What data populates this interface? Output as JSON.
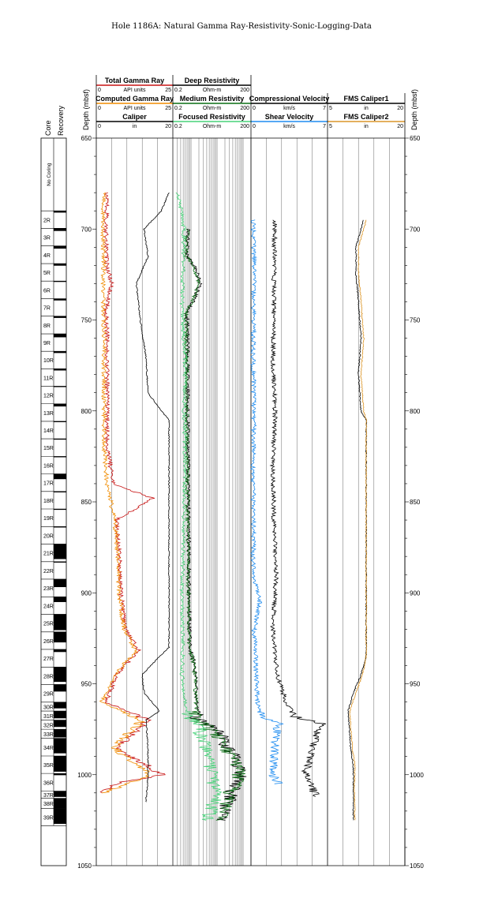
{
  "title": "Hole 1186A: Natural Gamma Ray-Resistivity-Sonic-Logging-Data",
  "depth_axis": {
    "label": "Depth (mbsf)",
    "min": 650,
    "max": 1050,
    "ticks": [
      650,
      700,
      750,
      800,
      850,
      900,
      950,
      1000,
      1050
    ]
  },
  "core_column": {
    "core_label": "Core",
    "recovery_label": "Recovery",
    "no_coring_label": "No Coring",
    "no_coring_range": [
      650,
      690
    ],
    "cores": [
      {
        "name": "2R",
        "top": 690.0,
        "bottom": 699.6,
        "rec": 0.1
      },
      {
        "name": "3R",
        "top": 699.6,
        "bottom": 709.3,
        "rec": 0.15
      },
      {
        "name": "4R",
        "top": 709.3,
        "bottom": 719.0,
        "rec": 0.15
      },
      {
        "name": "5R",
        "top": 719.0,
        "bottom": 728.6,
        "rec": 0.12
      },
      {
        "name": "6R",
        "top": 728.6,
        "bottom": 738.3,
        "rec": 0.05
      },
      {
        "name": "7R",
        "top": 738.3,
        "bottom": 747.9,
        "rec": 0.1
      },
      {
        "name": "8R",
        "top": 747.9,
        "bottom": 757.6,
        "rec": 0.1
      },
      {
        "name": "9R",
        "top": 757.6,
        "bottom": 767.2,
        "rec": 0.2
      },
      {
        "name": "10R",
        "top": 767.2,
        "bottom": 776.8,
        "rec": 0.1
      },
      {
        "name": "11R",
        "top": 776.8,
        "bottom": 786.4,
        "rec": 0.1
      },
      {
        "name": "12R",
        "top": 786.4,
        "bottom": 796.1,
        "rec": 0.05
      },
      {
        "name": "13R",
        "top": 796.1,
        "bottom": 805.7,
        "rec": 0.15
      },
      {
        "name": "14R",
        "top": 805.7,
        "bottom": 815.3,
        "rec": 0.05
      },
      {
        "name": "15R",
        "top": 815.3,
        "bottom": 825.0,
        "rec": 0.05
      },
      {
        "name": "16R",
        "top": 825.0,
        "bottom": 834.6,
        "rec": 0.05
      },
      {
        "name": "17R",
        "top": 834.6,
        "bottom": 844.3,
        "rec": 0.3
      },
      {
        "name": "18R",
        "top": 844.3,
        "bottom": 853.9,
        "rec": 0.05
      },
      {
        "name": "19R",
        "top": 853.9,
        "bottom": 863.6,
        "rec": 0.05
      },
      {
        "name": "20R",
        "top": 863.6,
        "bottom": 873.2,
        "rec": 0.05
      },
      {
        "name": "21R",
        "top": 873.2,
        "bottom": 882.9,
        "rec": 0.85
      },
      {
        "name": "22R",
        "top": 882.9,
        "bottom": 892.5,
        "rec": 0.05
      },
      {
        "name": "23R",
        "top": 892.5,
        "bottom": 902.2,
        "rec": 0.45
      },
      {
        "name": "24R",
        "top": 902.2,
        "bottom": 911.8,
        "rec": 0.3
      },
      {
        "name": "25R",
        "top": 911.8,
        "bottom": 921.5,
        "rec": 0.9
      },
      {
        "name": "26R",
        "top": 921.5,
        "bottom": 931.1,
        "rec": 0.6
      },
      {
        "name": "27R",
        "top": 931.1,
        "bottom": 940.8,
        "rec": 0.15
      },
      {
        "name": "28R",
        "top": 940.8,
        "bottom": 950.4,
        "rec": 0.85
      },
      {
        "name": "29R",
        "top": 950.4,
        "bottom": 960.1,
        "rec": 0.4
      },
      {
        "name": "30R",
        "top": 960.1,
        "bottom": 965.0,
        "rec": 0.7
      },
      {
        "name": "31R",
        "top": 965.0,
        "bottom": 970.0,
        "rec": 0.8
      },
      {
        "name": "32R",
        "top": 970.0,
        "bottom": 975.0,
        "rec": 0.75
      },
      {
        "name": "33R",
        "top": 975.0,
        "bottom": 980.0,
        "rec": 0.9
      },
      {
        "name": "34R",
        "top": 980.0,
        "bottom": 989.7,
        "rec": 0.85
      },
      {
        "name": "35R",
        "top": 989.7,
        "bottom": 999.3,
        "rec": 0.9
      },
      {
        "name": "36R",
        "top": 999.3,
        "bottom": 1009.0,
        "rec": 0.1
      },
      {
        "name": "37R",
        "top": 1009.0,
        "bottom": 1013.0,
        "rec": 0.8
      },
      {
        "name": "38R",
        "top": 1013.0,
        "bottom": 1018.5,
        "rec": 1.0
      },
      {
        "name": "39R",
        "top": 1018.5,
        "bottom": 1028.0,
        "rec": 0.9
      }
    ]
  },
  "tracks": {
    "track1": {
      "curves": [
        {
          "name": "Total Gamma Ray",
          "unit": "API units",
          "min_label": "0",
          "max_label": "25",
          "color": "#c81414"
        },
        {
          "name": "Computed Gamma Ray",
          "unit": "API units",
          "min_label": "0",
          "max_label": "25",
          "color": "#f08c00"
        },
        {
          "name": "Caliper",
          "unit": "in",
          "min_label": "0",
          "max_label": "20",
          "color": "#000000"
        }
      ]
    },
    "track2": {
      "curves": [
        {
          "name": "Deep Resistivity",
          "unit": "Ohm-m",
          "min_label": "0.2",
          "max_label": "200",
          "color": "#000000"
        },
        {
          "name": "Medium Resistivity",
          "unit": "Ohm-m",
          "min_label": "0.2",
          "max_label": "200",
          "color": "#0a6e14"
        },
        {
          "name": "Focused Resistivity",
          "unit": "Ohm-m",
          "min_label": "0.2",
          "max_label": "200",
          "color": "#46d278"
        }
      ]
    },
    "track3": {
      "curves": [
        {
          "name": "Compressional Velocity",
          "unit": "km/s",
          "min_label": "0",
          "max_label": "7",
          "color": "#000000"
        },
        {
          "name": "Shear Velocity",
          "unit": "km/s",
          "min_label": "0",
          "max_label": "7",
          "color": "#1e8cf0"
        }
      ]
    },
    "track4": {
      "curves": [
        {
          "name": "FMS Caliper1",
          "unit": "in",
          "min_label": "5",
          "max_label": "20",
          "color": "#000000"
        },
        {
          "name": "FMS Caliper2",
          "unit": "in",
          "min_label": "5",
          "max_label": "20",
          "color": "#dc9628"
        }
      ]
    }
  },
  "chart_data": {
    "type": "line",
    "y_axis": "depth (mbsf)",
    "series": [
      {
        "name": "Total Gamma Ray",
        "track": 1,
        "min": 0,
        "max": 25,
        "scale": "linear",
        "color": "#c81414",
        "depth": [
          680,
          700,
          720,
          730,
          745,
          760,
          790,
          820,
          840,
          848,
          860,
          880,
          900,
          920,
          932,
          945,
          955,
          960,
          970,
          975,
          985,
          1000,
          1005,
          1010
        ],
        "values": [
          3.5,
          3.2,
          3.4,
          5.0,
          3.2,
          3.6,
          3.5,
          3.6,
          5.5,
          18.5,
          6.5,
          7.5,
          8.0,
          9.5,
          14,
          6.5,
          4.5,
          3,
          17,
          14,
          6.5,
          21.5,
          6,
          2.5
        ]
      },
      {
        "name": "Computed Gamma Ray",
        "track": 1,
        "min": 0,
        "max": 25,
        "scale": "linear",
        "color": "#f08c00",
        "depth": [
          680,
          700,
          720,
          745,
          760,
          790,
          820,
          840,
          860,
          880,
          900,
          920,
          932,
          945,
          955,
          960,
          970,
          975,
          985,
          1000,
          1010
        ],
        "values": [
          2.5,
          2.2,
          2.4,
          2.3,
          2.6,
          2.5,
          2.6,
          3.5,
          6.0,
          7.0,
          7.5,
          9.0,
          13,
          6.0,
          3.5,
          1.5,
          15,
          12,
          5.5,
          18,
          2.0
        ]
      },
      {
        "name": "Caliper",
        "track": 1,
        "min": 0,
        "max": 20,
        "scale": "linear",
        "color": "#000000",
        "depth": [
          680,
          690,
          700,
          715,
          730,
          750,
          770,
          790,
          800,
          805,
          820,
          850,
          880,
          900,
          920,
          930,
          935,
          945,
          955,
          965,
          970,
          985,
          1000,
          1015
        ],
        "values": [
          19,
          17,
          12.5,
          13.5,
          10.5,
          11.5,
          13,
          13.5,
          17,
          19,
          19,
          19,
          19,
          19,
          19,
          19,
          16.5,
          12,
          12.5,
          16.5,
          13,
          13.5,
          13.5,
          13
        ]
      },
      {
        "name": "Deep Resistivity",
        "track": 2,
        "min": 0.2,
        "max": 200,
        "scale": "log",
        "color": "#000000",
        "depth": [
          700,
          715,
          725,
          730,
          745,
          770,
          800,
          850,
          900,
          930,
          940,
          955,
          968,
          972,
          985,
          1000,
          1010,
          1025
        ],
        "values": [
          0.8,
          0.7,
          1.8,
          2.2,
          0.7,
          0.75,
          0.75,
          0.8,
          0.85,
          0.9,
          1.4,
          1.6,
          1.8,
          3.5,
          30,
          90,
          40,
          15
        ]
      },
      {
        "name": "Medium Resistivity",
        "track": 2,
        "min": 0.2,
        "max": 200,
        "scale": "log",
        "color": "#0a6e14",
        "depth": [
          700,
          715,
          725,
          730,
          745,
          770,
          800,
          850,
          900,
          930,
          940,
          955,
          968,
          972,
          985,
          1000,
          1010,
          1025
        ],
        "values": [
          0.75,
          0.65,
          1.6,
          2.0,
          0.65,
          0.7,
          0.7,
          0.75,
          0.8,
          0.85,
          1.3,
          1.5,
          1.7,
          3,
          20,
          80,
          35,
          12
        ]
      },
      {
        "name": "Focused Resistivity",
        "track": 2,
        "min": 0.2,
        "max": 200,
        "scale": "log",
        "color": "#46d278",
        "depth": [
          680,
          700,
          720,
          745,
          770,
          800,
          830,
          850,
          880,
          900,
          930,
          945,
          960,
          968,
          975,
          990,
          1000,
          1015,
          1025
        ],
        "values": [
          0.3,
          0.55,
          0.5,
          0.45,
          0.6,
          0.55,
          0.6,
          0.55,
          0.5,
          0.45,
          0.5,
          0.45,
          0.6,
          0.8,
          2.5,
          5,
          8,
          10,
          4
        ]
      },
      {
        "name": "Compressional Velocity",
        "track": 3,
        "min": 0,
        "max": 7,
        "scale": "linear",
        "color": "#000000",
        "depth": [
          695,
          720,
          745,
          770,
          800,
          830,
          860,
          890,
          920,
          945,
          960,
          968,
          972,
          985,
          1000,
          1012
        ],
        "values": [
          2.2,
          2.1,
          2.1,
          2.0,
          2.2,
          2.0,
          2.1,
          2.3,
          2.0,
          2.4,
          3.2,
          4.0,
          6.5,
          5.5,
          5.0,
          6.0
        ]
      },
      {
        "name": "Shear Velocity",
        "track": 3,
        "min": 0,
        "max": 7,
        "scale": "linear",
        "color": "#1e8cf0",
        "depth": [
          695,
          720,
          745,
          770,
          800,
          830,
          860,
          890,
          905,
          920,
          945,
          960,
          968,
          972,
          985,
          1000,
          1005
        ],
        "values": [
          0.2,
          0.3,
          0.25,
          0.2,
          0.3,
          0.2,
          0.25,
          0.2,
          0.8,
          0.3,
          0.5,
          0.6,
          1.0,
          2.5,
          2.2,
          2.0,
          2.5
        ]
      },
      {
        "name": "FMS Caliper1",
        "track": 4,
        "min": 5,
        "max": 20,
        "scale": "linear",
        "color": "#000000",
        "depth": [
          695,
          710,
          725,
          740,
          760,
          780,
          800,
          805,
          830,
          870,
          910,
          935,
          945,
          955,
          965,
          985,
          995,
          1010,
          1025
        ],
        "values": [
          12,
          10.5,
          10.5,
          11,
          11.5,
          11,
          11.5,
          12.5,
          12.5,
          12.5,
          12.5,
          12.5,
          11.5,
          10,
          9,
          9.5,
          10,
          10,
          10
        ]
      },
      {
        "name": "FMS Caliper2",
        "track": 4,
        "min": 5,
        "max": 20,
        "scale": "linear",
        "color": "#dc9628",
        "depth": [
          695,
          710,
          725,
          740,
          760,
          780,
          800,
          805,
          830,
          870,
          910,
          935,
          945,
          955,
          965,
          985,
          995,
          1010,
          1025
        ],
        "values": [
          12.5,
          11,
          11,
          11.5,
          12,
          11.5,
          12,
          12.5,
          12.5,
          12.5,
          12.5,
          12.5,
          11.8,
          10.5,
          9.3,
          9.8,
          10.3,
          10.2,
          10.3
        ]
      }
    ]
  }
}
